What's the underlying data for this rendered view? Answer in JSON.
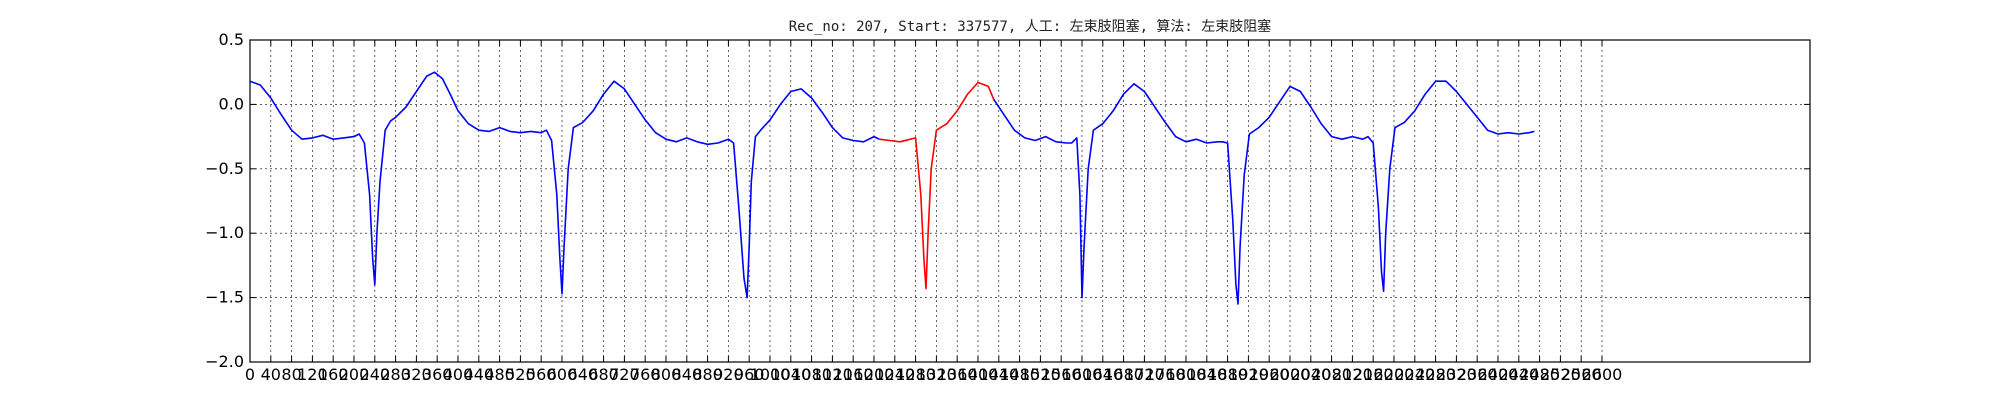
{
  "chart_data": {
    "type": "line",
    "title": "Rec_no: 207, Start: 337577, 人工: 左束肢阻塞, 算法: 左束肢阻塞",
    "xlabel": "",
    "ylabel": "",
    "xlim": [
      0,
      3000
    ],
    "ylim": [
      -2.0,
      0.5
    ],
    "grid": true,
    "y_ticks": [
      0.5,
      0.0,
      -0.5,
      -1.0,
      -1.5,
      -2.0
    ],
    "y_tick_labels": [
      "0.5",
      "0.0",
      "−0.5",
      "−1.0",
      "−1.5",
      "−2.0"
    ],
    "x_ticks": [
      0,
      40,
      80,
      120,
      160,
      200,
      240,
      280,
      320,
      360,
      400,
      440,
      480,
      520,
      560,
      600,
      640,
      680,
      720,
      760,
      800,
      840,
      880,
      920,
      960,
      1000,
      1040,
      1080,
      1120,
      1160,
      1200,
      1240,
      1280,
      1320,
      1360,
      1400,
      1440,
      1480,
      1520,
      1560,
      1600,
      1640,
      1680,
      1720,
      1760,
      1800,
      1840,
      1880,
      1920,
      1960,
      2000,
      2040,
      2080,
      2120,
      2160,
      2200,
      2240,
      2280,
      2320,
      2360,
      2400,
      2440,
      2480,
      2520,
      2560,
      2600
    ],
    "series": [
      {
        "color": "#0000ff",
        "x": [
          0,
          20,
          40,
          60,
          80,
          100,
          120,
          140,
          160,
          180,
          200,
          210,
          220,
          230,
          236,
          240,
          244,
          250,
          260,
          270,
          280,
          300,
          320,
          340,
          355,
          370,
          385,
          400,
          420,
          440,
          460,
          480,
          500,
          520,
          540,
          560,
          570,
          580,
          590,
          596,
          600,
          604,
          612,
          622,
          640,
          660,
          680,
          700,
          720,
          740,
          760,
          780,
          800,
          820,
          840,
          860,
          880,
          900,
          920,
          930,
          940,
          950,
          956,
          960,
          964,
          972,
          982,
          1000,
          1020,
          1040,
          1060,
          1080,
          1100,
          1120,
          1140,
          1160,
          1180,
          1200,
          1210
        ],
        "y": [
          0.18,
          0.15,
          0.05,
          -0.08,
          -0.2,
          -0.27,
          -0.26,
          -0.24,
          -0.27,
          -0.26,
          -0.25,
          -0.23,
          -0.3,
          -0.7,
          -1.2,
          -1.4,
          -1.0,
          -0.6,
          -0.2,
          -0.13,
          -0.1,
          -0.02,
          0.1,
          0.22,
          0.25,
          0.2,
          0.08,
          -0.05,
          -0.15,
          -0.2,
          -0.21,
          -0.18,
          -0.21,
          -0.22,
          -0.21,
          -0.22,
          -0.2,
          -0.28,
          -0.7,
          -1.2,
          -1.47,
          -1.1,
          -0.5,
          -0.18,
          -0.14,
          -0.05,
          0.08,
          0.18,
          0.12,
          0.0,
          -0.12,
          -0.22,
          -0.27,
          -0.29,
          -0.26,
          -0.29,
          -0.31,
          -0.3,
          -0.27,
          -0.3,
          -0.8,
          -1.35,
          -1.5,
          -1.1,
          -0.6,
          -0.25,
          -0.2,
          -0.12,
          0.0,
          0.1,
          0.12,
          0.05,
          -0.06,
          -0.18,
          -0.26,
          -0.28,
          -0.29,
          -0.25,
          -0.27
        ]
      },
      {
        "color": "#ff0000",
        "x": [
          1210,
          1230,
          1250,
          1270,
          1280,
          1290,
          1296,
          1300,
          1304,
          1310,
          1320,
          1340,
          1360,
          1380,
          1400,
          1420,
          1430
        ],
        "y": [
          -0.27,
          -0.28,
          -0.29,
          -0.27,
          -0.26,
          -0.7,
          -1.2,
          -1.43,
          -1.0,
          -0.5,
          -0.2,
          -0.15,
          -0.05,
          0.08,
          0.17,
          0.14,
          0.04
        ]
      },
      {
        "color": "#0000ff",
        "x": [
          1430,
          1450,
          1470,
          1490,
          1510,
          1530,
          1550,
          1570,
          1580,
          1590,
          1596,
          1600,
          1604,
          1612,
          1622,
          1640,
          1660,
          1680,
          1700,
          1720,
          1740,
          1760,
          1780,
          1800,
          1820,
          1840,
          1860,
          1870,
          1880,
          1890,
          1896,
          1900,
          1904,
          1912,
          1922,
          1940,
          1960,
          1980,
          2000,
          2020,
          2040,
          2060,
          2080,
          2100,
          2120,
          2140,
          2150,
          2160,
          2170,
          2176,
          2180,
          2184,
          2192,
          2202,
          2220,
          2240,
          2260,
          2280,
          2300,
          2320,
          2340,
          2360,
          2380,
          2400,
          2420,
          2440,
          2460,
          2470
        ],
        "y": [
          0.04,
          -0.08,
          -0.2,
          -0.26,
          -0.28,
          -0.25,
          -0.29,
          -0.3,
          -0.3,
          -0.26,
          -0.7,
          -1.5,
          -1.1,
          -0.5,
          -0.2,
          -0.15,
          -0.05,
          0.08,
          0.16,
          0.1,
          -0.02,
          -0.14,
          -0.25,
          -0.29,
          -0.27,
          -0.3,
          -0.29,
          -0.29,
          -0.3,
          -0.9,
          -1.4,
          -1.55,
          -1.1,
          -0.55,
          -0.23,
          -0.18,
          -0.1,
          0.02,
          0.14,
          0.1,
          -0.02,
          -0.15,
          -0.25,
          -0.27,
          -0.25,
          -0.27,
          -0.25,
          -0.3,
          -0.8,
          -1.3,
          -1.45,
          -1.0,
          -0.5,
          -0.18,
          -0.14,
          -0.05,
          0.08,
          0.18,
          0.18,
          0.1,
          0.0,
          -0.1,
          -0.2,
          -0.23,
          -0.22,
          -0.23,
          -0.22,
          -0.21
        ]
      }
    ]
  }
}
